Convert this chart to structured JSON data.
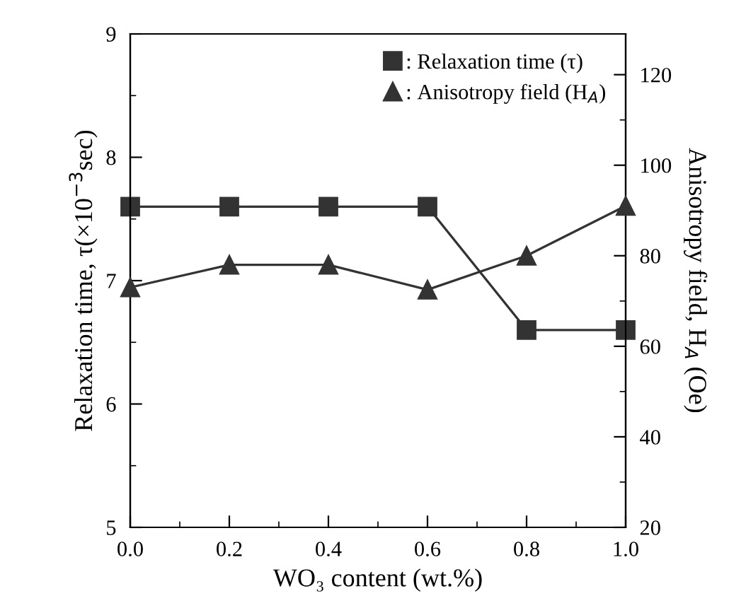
{
  "chart_data": {
    "type": "line",
    "xlabel": "WO₃ content (wt.%)",
    "ylabel": "Relaxation time, τ(×10$^{−3}$sec)",
    "y2label": "Anisotropy field, H$_{A}$ (Oe)",
    "x": [
      0.0,
      0.2,
      0.4,
      0.6,
      0.8,
      1.0
    ],
    "series": [
      {
        "name": ": Relaxation time (τ)",
        "color": "#333333",
        "marker": "square",
        "values": [
          7.6,
          7.6,
          7.6,
          7.6,
          6.6,
          6.6
        ]
      },
      {
        "name": ": Anisotropy field (H$_{A}$)",
        "color": "#333333",
        "marker": "triangle",
        "axis": "y2",
        "values": [
          73,
          78,
          78,
          72.5,
          80,
          91
        ]
      }
    ],
    "xlim": [
      0.0,
      1.0
    ],
    "xticks": [
      {
        "value": 0.0,
        "label": "0.0"
      },
      0.2,
      0.4,
      0.6,
      0.8,
      {
        "value": 1.0,
        "label": "1.0"
      }
    ],
    "ylim": [
      5,
      9
    ],
    "yticks": [
      5,
      6,
      7,
      8,
      9
    ],
    "y2lim": [
      20,
      129
    ],
    "y2ticks": [
      20,
      40,
      60,
      80,
      100,
      120
    ],
    "legend": "top right",
    "grid": false,
    "line_style": "solid"
  }
}
